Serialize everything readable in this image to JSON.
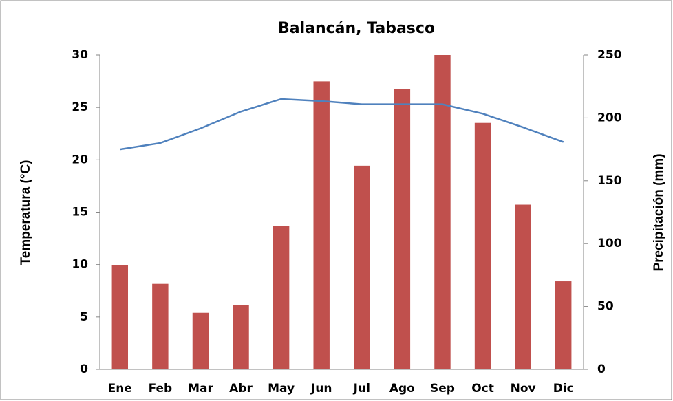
{
  "chart_data": {
    "type": "bar-line",
    "title": "Balancán, Tabasco",
    "y_label": "Temperatura (°C)",
    "y2_label": "Precipitación (mm)",
    "categories": [
      "Ene",
      "Feb",
      "Mar",
      "Abr",
      "May",
      "Jun",
      "Jul",
      "Ago",
      "Sep",
      "Oct",
      "Nov",
      "Dic"
    ],
    "series": [
      {
        "type": "bar",
        "axis": "y2",
        "color": "#c0504d",
        "values": [
          83,
          68,
          45,
          51,
          114,
          229,
          162,
          223,
          250,
          196,
          131,
          70
        ]
      },
      {
        "type": "line",
        "axis": "y",
        "color": "#4f81bd",
        "values": [
          21.0,
          21.6,
          23.0,
          24.6,
          25.8,
          25.6,
          25.3,
          25.3,
          25.3,
          24.4,
          23.1,
          21.7
        ]
      }
    ],
    "ylim": [
      0,
      30
    ],
    "yticks": [
      0,
      5,
      10,
      15,
      20,
      25,
      30
    ],
    "y2lim": [
      0,
      250
    ],
    "y2ticks": [
      0,
      50,
      100,
      150,
      200,
      250
    ],
    "grid": false
  }
}
